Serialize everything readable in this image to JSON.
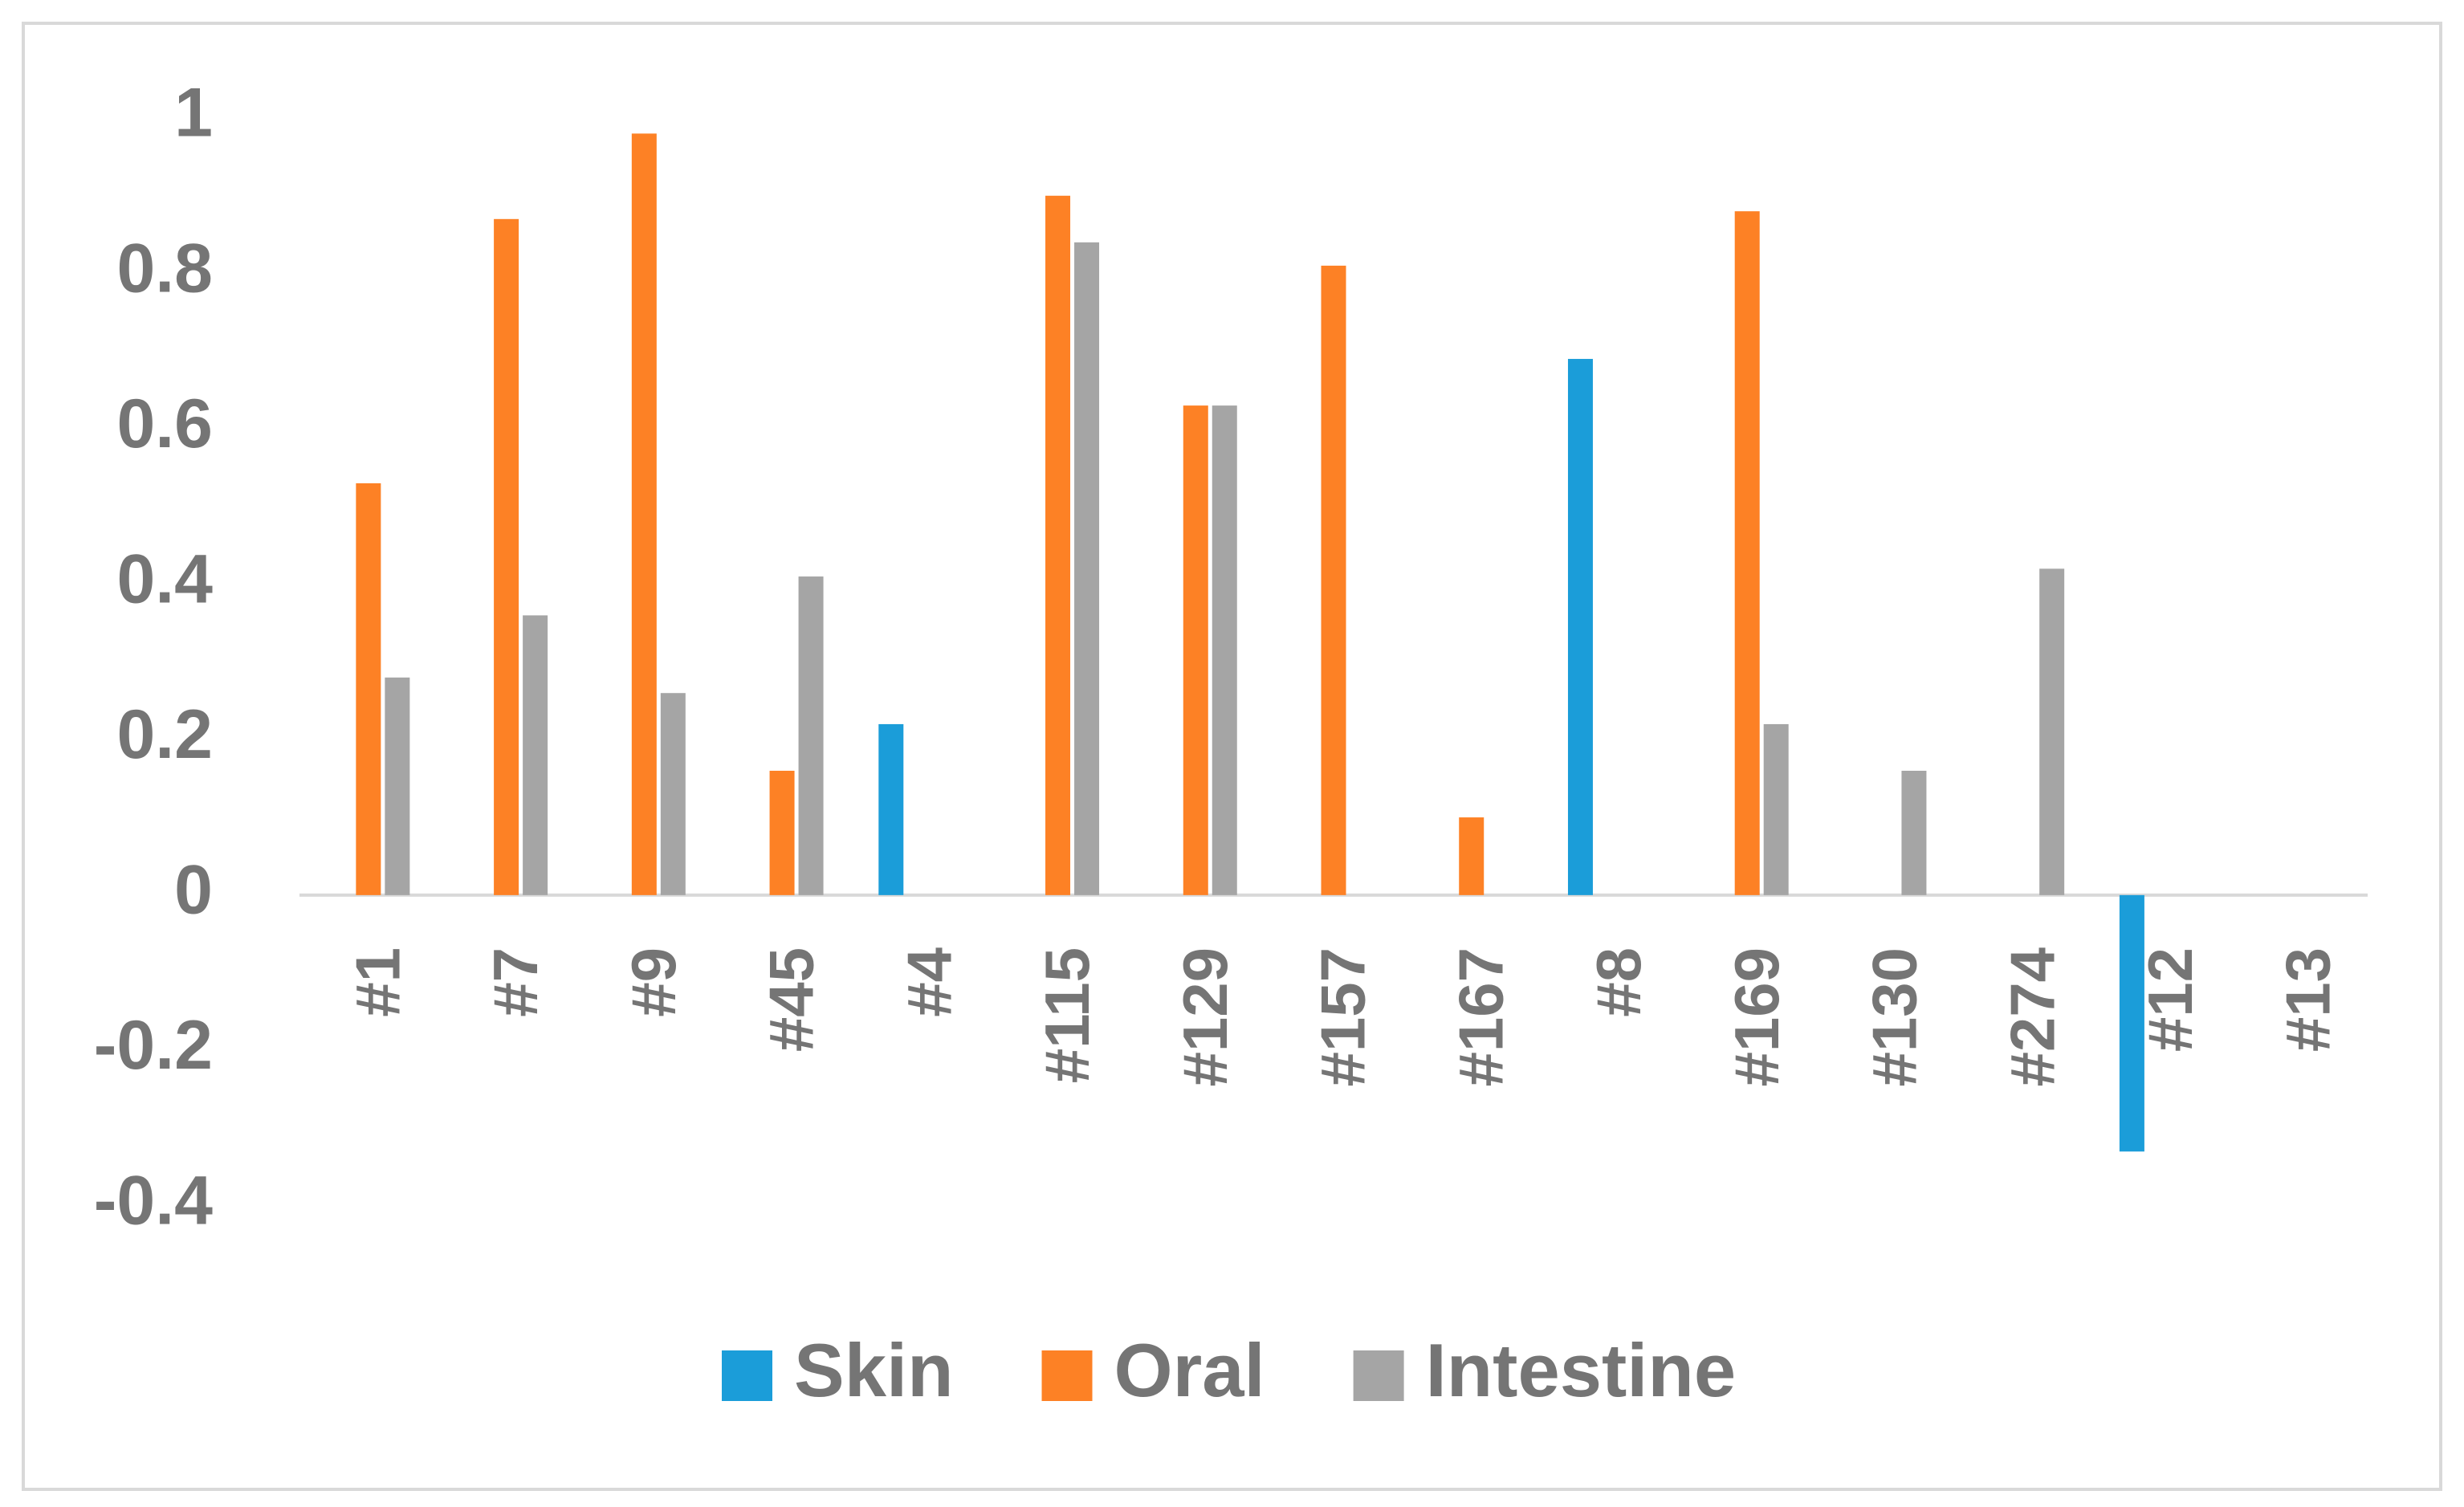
{
  "chart_data": {
    "type": "bar",
    "categories": [
      "#1",
      "#7",
      "#9",
      "#45",
      "#4",
      "#115",
      "#129",
      "#157",
      "#167",
      "#8",
      "#169",
      "#130",
      "#274",
      "#12",
      "#13"
    ],
    "series": [
      {
        "name": "Skin",
        "color": "#1b9dd9",
        "values": [
          null,
          null,
          null,
          null,
          0.22,
          null,
          null,
          null,
          null,
          0.69,
          null,
          null,
          null,
          -0.33,
          null
        ]
      },
      {
        "name": "Oral",
        "color": "#fd8125",
        "values": [
          0.53,
          0.87,
          0.98,
          0.16,
          null,
          0.9,
          0.63,
          0.81,
          0.1,
          null,
          0.88,
          null,
          null,
          null,
          null
        ]
      },
      {
        "name": "Intestine",
        "color": "#a5a5a5",
        "values": [
          0.28,
          0.36,
          0.26,
          0.41,
          null,
          0.84,
          0.63,
          null,
          null,
          null,
          0.22,
          0.16,
          0.42,
          null,
          null
        ]
      }
    ],
    "ylim": [
      -0.4,
      1
    ],
    "yticks": [
      -0.4,
      -0.2,
      0,
      0.2,
      0.4,
      0.6,
      0.8,
      1
    ],
    "grid": false,
    "legend": "bottom"
  }
}
